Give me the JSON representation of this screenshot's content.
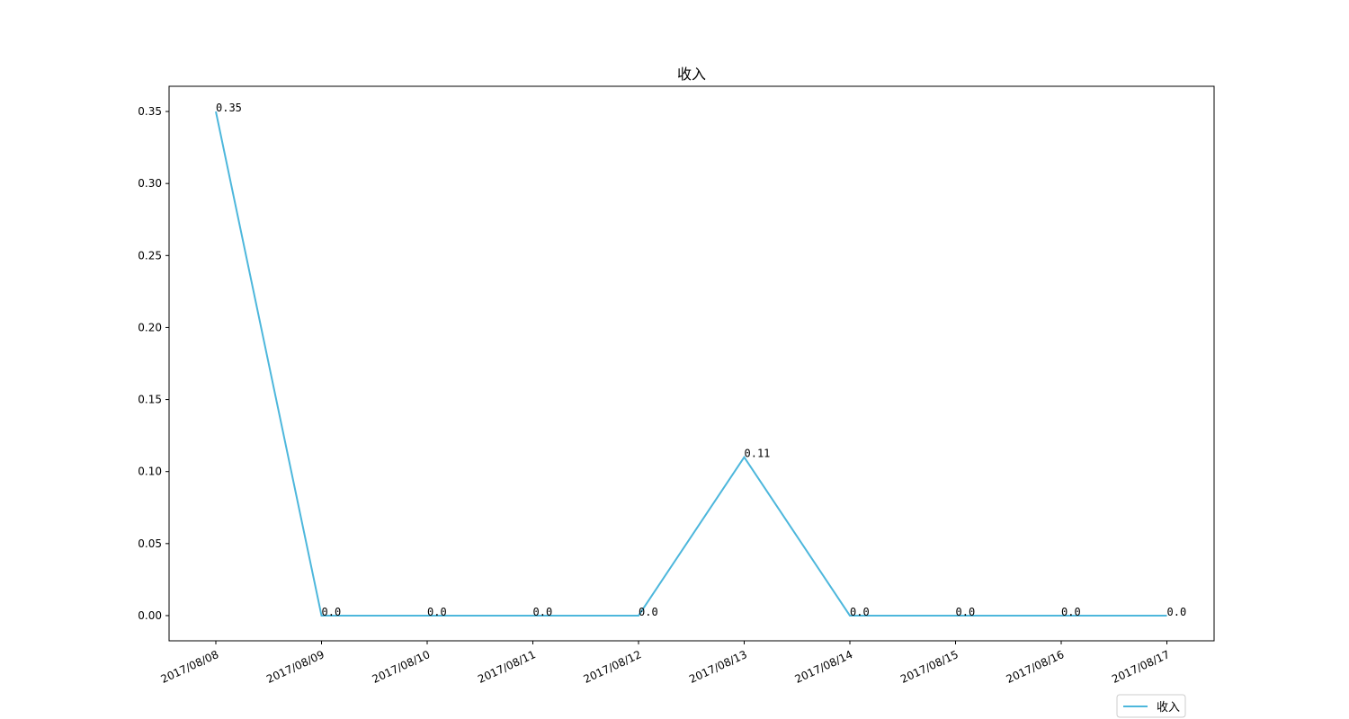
{
  "chart_data": {
    "type": "line",
    "title": "收入",
    "xlabel": "",
    "ylabel": "",
    "categories": [
      "2017/08/08",
      "2017/08/09",
      "2017/08/10",
      "2017/08/11",
      "2017/08/12",
      "2017/08/13",
      "2017/08/14",
      "2017/08/15",
      "2017/08/16",
      "2017/08/17"
    ],
    "series": [
      {
        "name": "收入",
        "color": "#4db7dc",
        "values": [
          0.35,
          0.0,
          0.0,
          0.0,
          0.0,
          0.11,
          0.0,
          0.0,
          0.0,
          0.0
        ],
        "labels": [
          "0.35",
          "0.0",
          "0.0",
          "0.0",
          "0.0",
          "0.11",
          "0.0",
          "0.0",
          "0.0",
          "0.0"
        ]
      }
    ],
    "ylim": [
      -0.0175,
      0.3675
    ],
    "yticks": [
      0.0,
      0.05,
      0.1,
      0.15,
      0.2,
      0.25,
      0.3,
      0.35
    ],
    "ytick_labels": [
      "0.00",
      "0.05",
      "0.10",
      "0.15",
      "0.20",
      "0.25",
      "0.30",
      "0.35"
    ],
    "xtick_rotation": 25,
    "grid": false,
    "legend_position": "bottom-right"
  }
}
